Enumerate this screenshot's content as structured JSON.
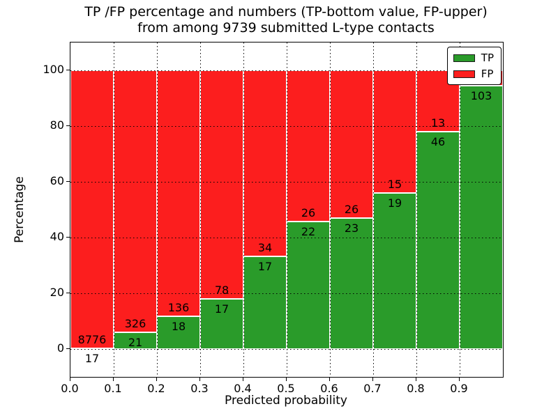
{
  "title": {
    "line1": "TP /FP percentage and numbers (TP-bottom value, FP-upper)",
    "line2": "from among 9739 submitted L-type contacts"
  },
  "chart_data": {
    "type": "bar",
    "stacked": true,
    "title": "TP /FP percentage and numbers (TP-bottom value, FP-upper) from among 9739 submitted L-type contacts",
    "xlabel": "Predicted probability",
    "ylabel": "Percentage",
    "xlim": [
      0.0,
      1.0
    ],
    "ylim": [
      -10,
      110
    ],
    "xticks": [
      "0.0",
      "0.1",
      "0.2",
      "0.3",
      "0.4",
      "0.5",
      "0.6",
      "0.7",
      "0.8",
      "0.9"
    ],
    "yticks": [
      0,
      20,
      40,
      60,
      80,
      100
    ],
    "grid": "dotted black, both axes",
    "legend_position": "upper right",
    "colors": {
      "tp": "#2a9b2a",
      "fp": "#fc1e1e",
      "bar_edge": "#ffffff"
    },
    "legend": [
      {
        "label": "TP",
        "color": "#2a9b2a"
      },
      {
        "label": "FP",
        "color": "#fc1e1e"
      }
    ],
    "bars": [
      {
        "bin_start": 0.0,
        "bin_end": 0.1,
        "tp_count": 17,
        "fp_count": 8776,
        "tp_pct": 0.19
      },
      {
        "bin_start": 0.1,
        "bin_end": 0.2,
        "tp_count": 21,
        "fp_count": 326,
        "tp_pct": 6.05
      },
      {
        "bin_start": 0.2,
        "bin_end": 0.3,
        "tp_count": 18,
        "fp_count": 136,
        "tp_pct": 11.69
      },
      {
        "bin_start": 0.3,
        "bin_end": 0.4,
        "tp_count": 17,
        "fp_count": 78,
        "tp_pct": 17.89
      },
      {
        "bin_start": 0.4,
        "bin_end": 0.5,
        "tp_count": 17,
        "fp_count": 34,
        "tp_pct": 33.33
      },
      {
        "bin_start": 0.5,
        "bin_end": 0.6,
        "tp_count": 22,
        "fp_count": 26,
        "tp_pct": 45.83
      },
      {
        "bin_start": 0.6,
        "bin_end": 0.7,
        "tp_count": 23,
        "fp_count": 26,
        "tp_pct": 46.94
      },
      {
        "bin_start": 0.7,
        "bin_end": 0.8,
        "tp_count": 19,
        "fp_count": 15,
        "tp_pct": 55.88
      },
      {
        "bin_start": 0.8,
        "bin_end": 0.9,
        "tp_count": 46,
        "fp_count": 13,
        "tp_pct": 77.97
      },
      {
        "bin_start": 0.9,
        "bin_end": 1.0,
        "tp_count": 103,
        "fp_count": null,
        "tp_pct": 94.5
      }
    ]
  }
}
